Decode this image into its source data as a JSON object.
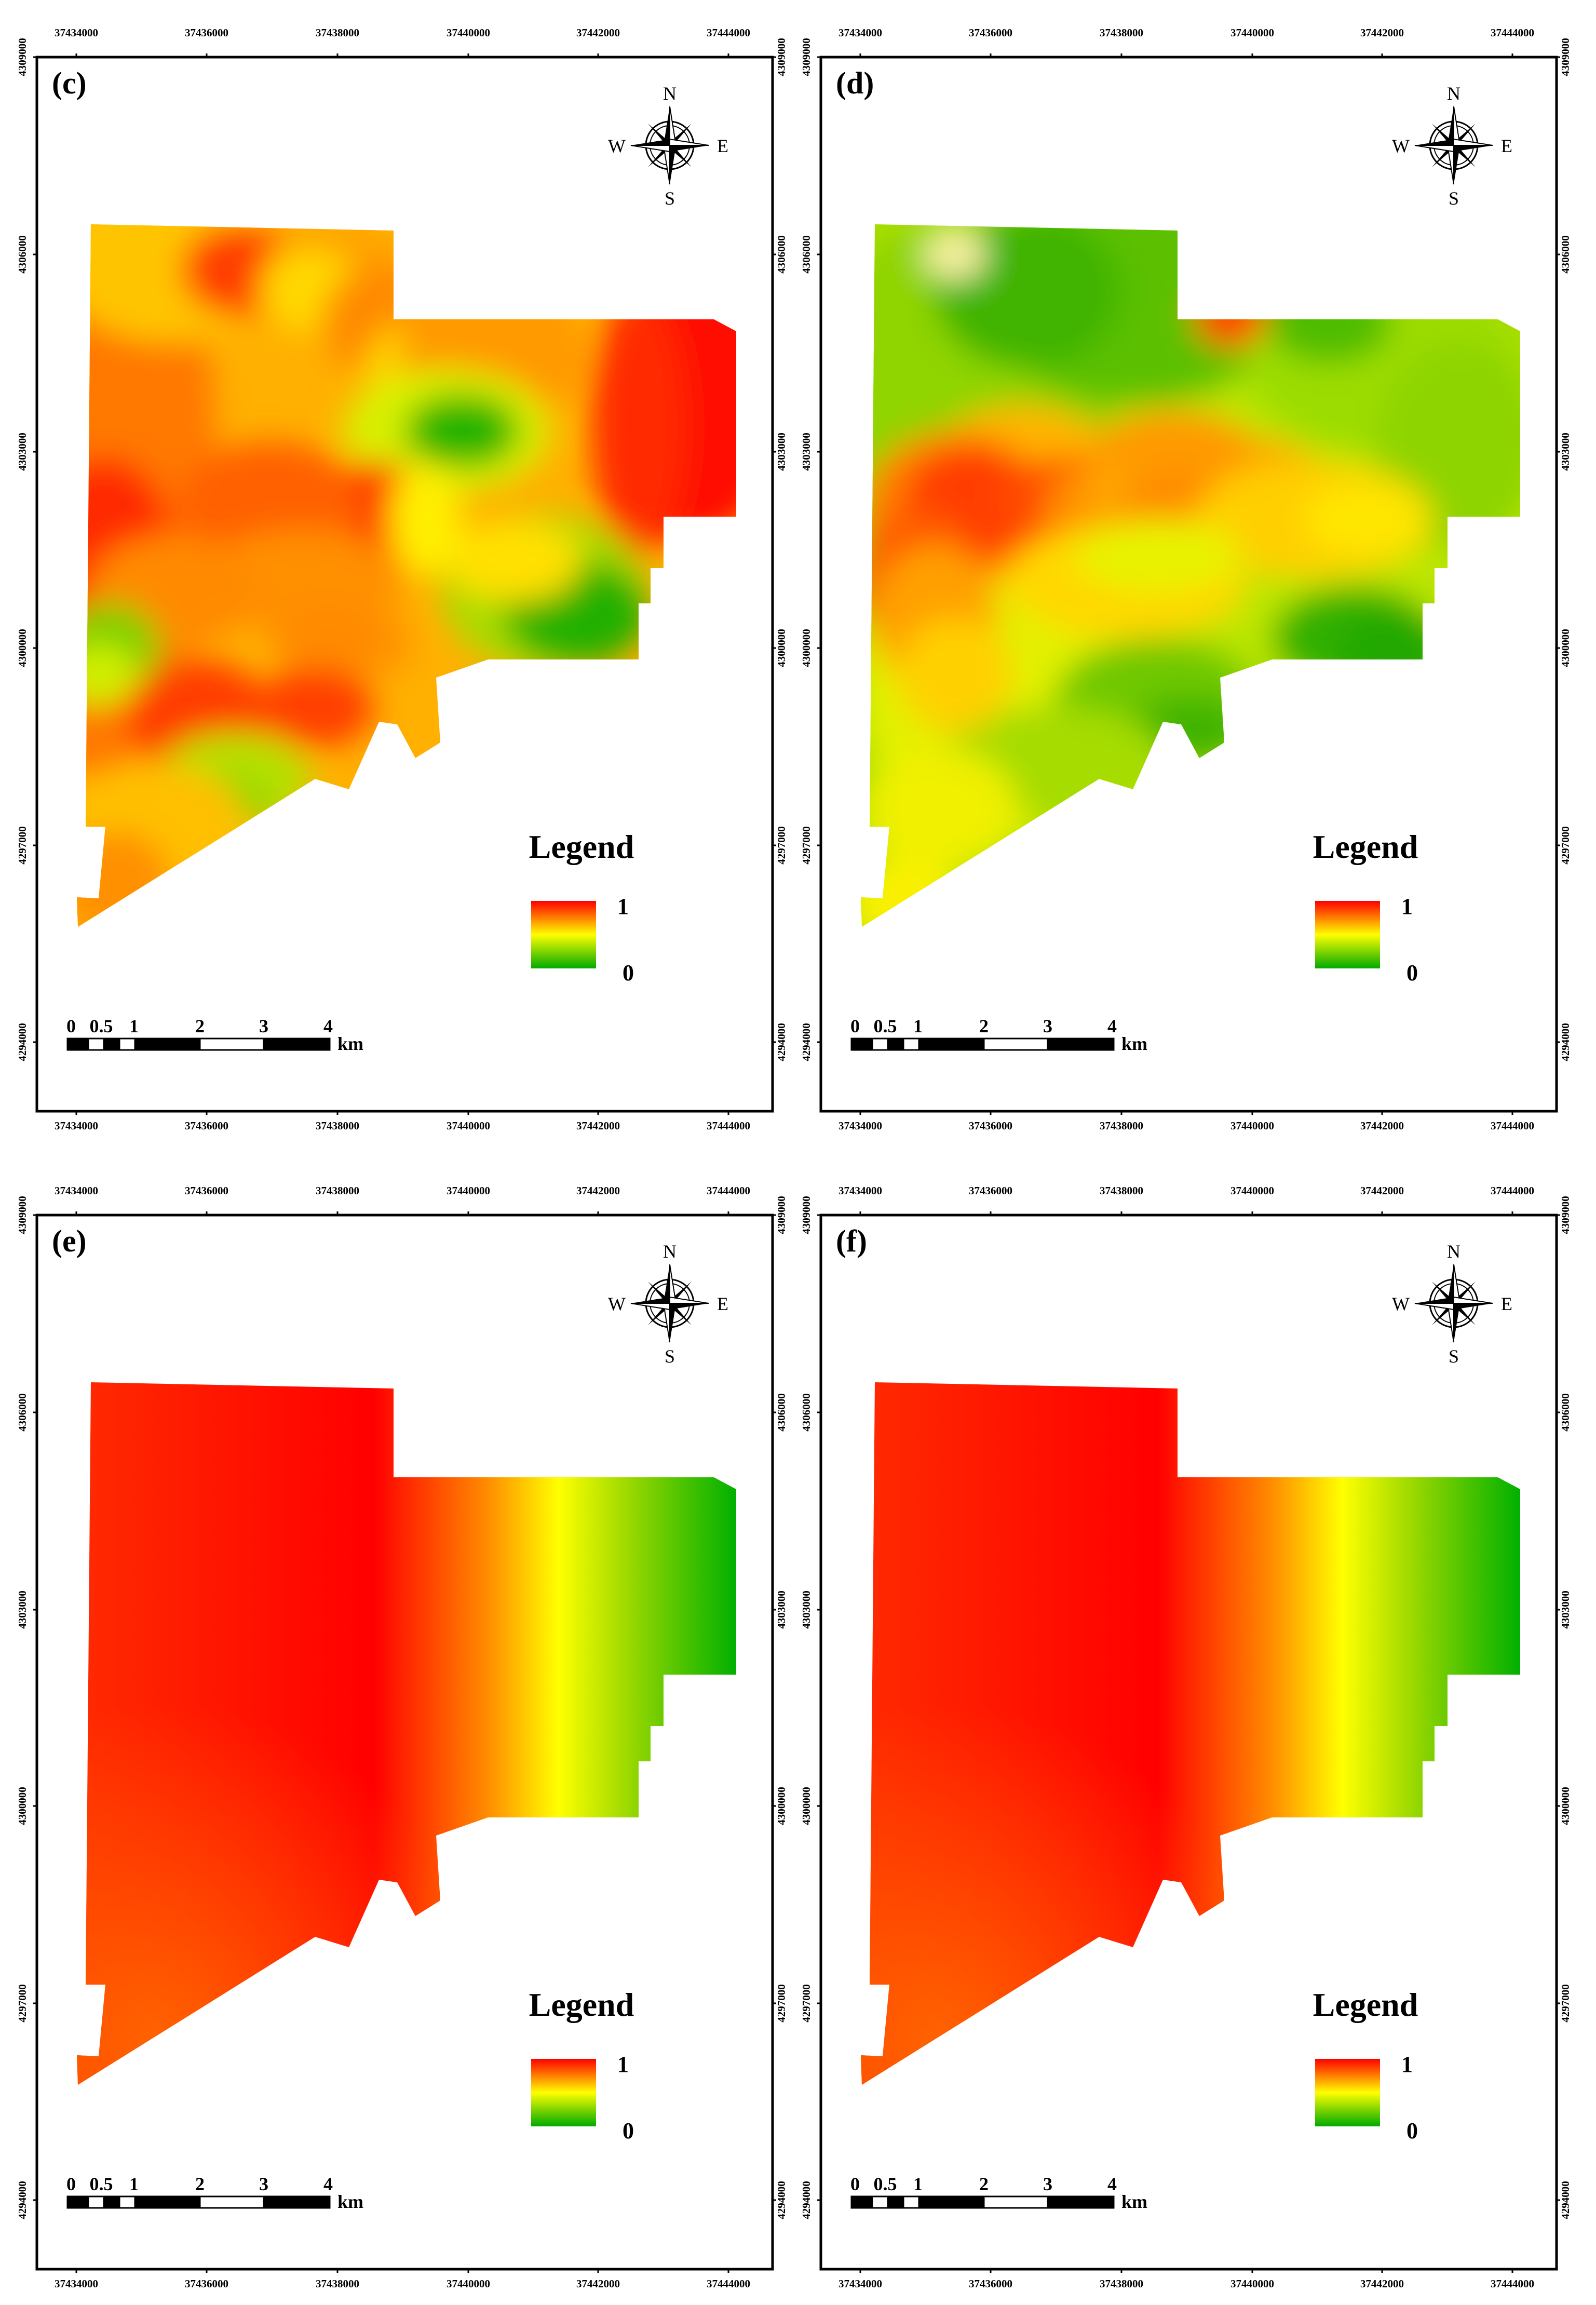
{
  "figure": {
    "panels": [
      {
        "id": "c",
        "label": "(c)",
        "pattern": "patchy"
      },
      {
        "id": "d",
        "label": "(d)",
        "pattern": "mostly-green"
      },
      {
        "id": "e",
        "label": "(e)",
        "pattern": "west-east-gradient"
      },
      {
        "id": "f",
        "label": "(f)",
        "pattern": "west-east-gradient"
      }
    ],
    "x_ticks": [
      "37434000",
      "37436000",
      "37438000",
      "37440000",
      "37442000",
      "37444000"
    ],
    "y_ticks": [
      "4309000",
      "4306000",
      "4303000",
      "4300000",
      "4297000",
      "4294000"
    ],
    "legend": {
      "title": "Legend",
      "max_label": "1",
      "min_label": "0",
      "colors": {
        "high": "#ff0000",
        "mid": "#ffff00",
        "low": "#00aa00"
      }
    },
    "scale_bar": {
      "labels": [
        "0",
        "0.5",
        "1",
        "2",
        "3",
        "4"
      ],
      "unit": "km"
    },
    "north_arrow": {
      "n": "N",
      "s": "S",
      "e": "E",
      "w": "W"
    }
  }
}
